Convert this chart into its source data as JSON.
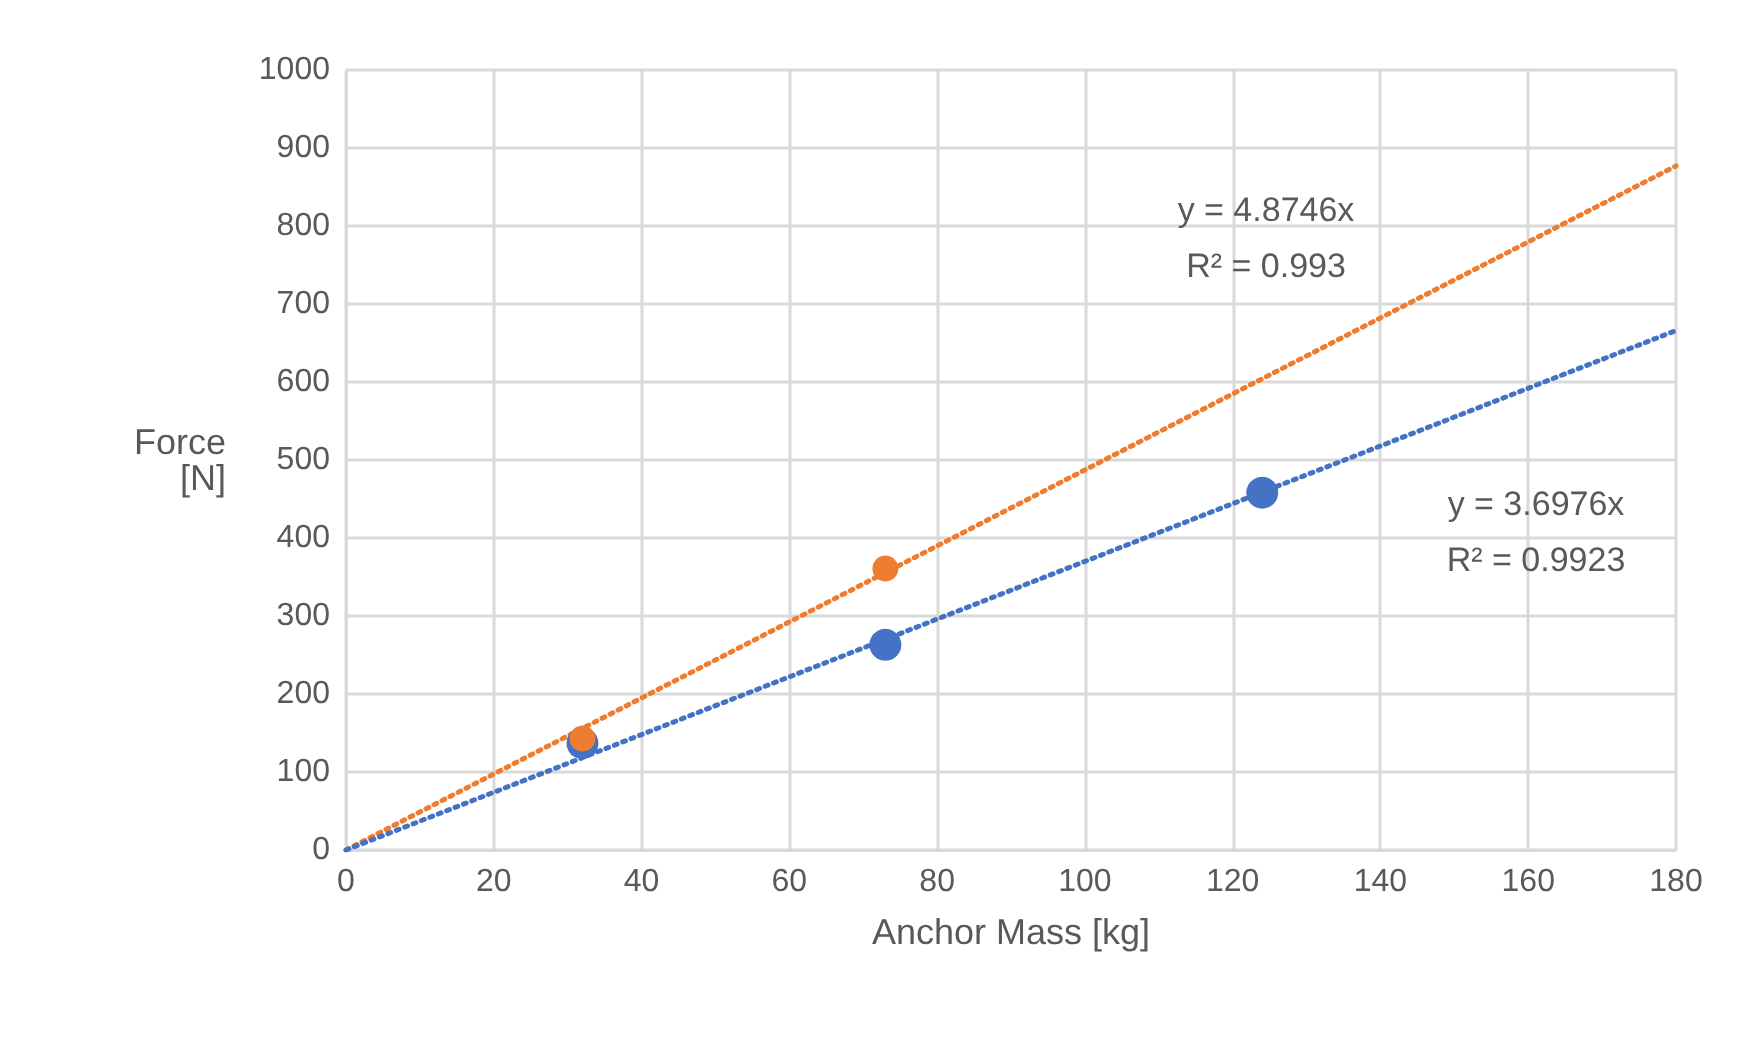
{
  "chart_data": {
    "type": "scatter",
    "xlabel": "Anchor Mass [kg]",
    "ylabel": "Force\n[N]",
    "xlim": [
      0,
      180
    ],
    "xticks": [
      0,
      20,
      40,
      60,
      80,
      100,
      120,
      140,
      160,
      180
    ],
    "ylim": [
      0,
      1000
    ],
    "yticks": [
      0,
      100,
      200,
      300,
      400,
      500,
      600,
      700,
      800,
      900,
      1000
    ],
    "grid": true,
    "marker": "circle",
    "series": [
      {
        "color": "#4472c4",
        "x": [
          32,
          73,
          124
        ],
        "values": [
          137,
          263,
          458
        ]
      },
      {
        "color": "#ed7d31",
        "x": [
          32,
          73
        ],
        "values": [
          143,
          361
        ]
      },
      {
        "type": "line",
        "line_style": "dotted",
        "marker": "none",
        "color": "#ed7d31",
        "x": [
          0,
          180
        ],
        "values": [
          0,
          877
        ]
      },
      {
        "type": "line",
        "line_style": "dotted",
        "marker": "none",
        "color": "#4472c4",
        "x": [
          0,
          180
        ],
        "values": [
          0,
          666
        ]
      }
    ],
    "annotations": [
      "y = 4.8746x",
      "R² = 0.993",
      "y = 3.6976x",
      "R² = 0.9923"
    ]
  }
}
